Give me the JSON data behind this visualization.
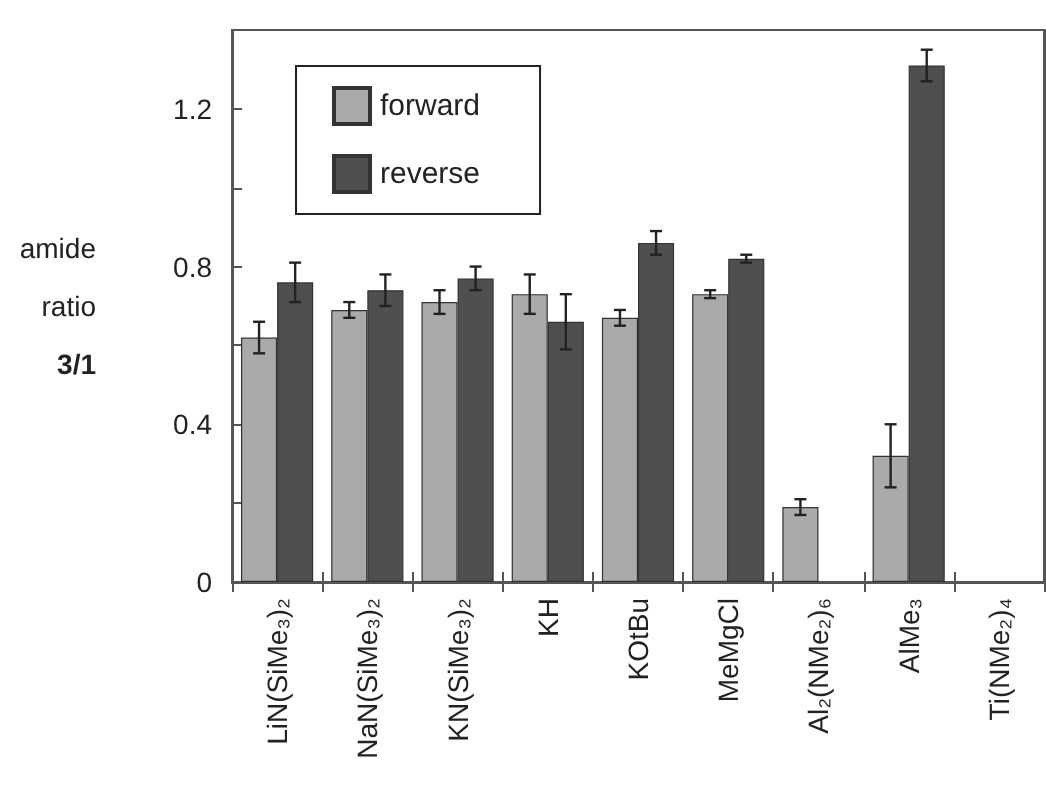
{
  "chart_data": {
    "type": "bar",
    "ylabel": "amide\nratio\n3/1",
    "categories": [
      "LiN(SiMe₃)₂",
      "NaN(SiMe₃)₂",
      "KN(SiMe₃)₂",
      "KH",
      "KOtBu",
      "MeMgCl",
      "Al₂(NMe₂)₆",
      "AlMe₃",
      "Ti(NMe₂)₄"
    ],
    "series": [
      {
        "name": "forward",
        "color": "#aaaaaa",
        "values": [
          0.62,
          0.69,
          0.71,
          0.73,
          0.67,
          0.73,
          0.19,
          0.32,
          null
        ],
        "errors": [
          0.04,
          0.02,
          0.03,
          0.05,
          0.02,
          0.01,
          0.02,
          0.08,
          null
        ]
      },
      {
        "name": "reverse",
        "color": "#4f4f4f",
        "values": [
          0.76,
          0.74,
          0.77,
          0.66,
          0.86,
          0.82,
          null,
          1.31,
          null
        ],
        "errors": [
          0.05,
          0.04,
          0.03,
          0.07,
          0.03,
          0.01,
          null,
          0.04,
          null
        ]
      }
    ],
    "ylim": [
      0,
      1.4
    ],
    "yticks": [
      0,
      {
        "value": 0.2,
        "label": null
      },
      0.4,
      {
        "value": 0.6,
        "label": null
      },
      0.8,
      {
        "value": 1.0,
        "label": null
      },
      1.2
    ],
    "grid": false,
    "legend": "top left"
  }
}
